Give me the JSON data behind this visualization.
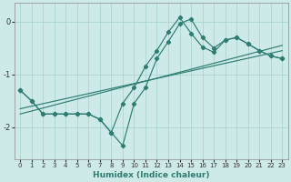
{
  "xlabel": "Humidex (Indice chaleur)",
  "bg_color": "#ceeae8",
  "line_color": "#2e7d72",
  "grid_color": "#aad4d0",
  "xlim": [
    -0.5,
    23.5
  ],
  "ylim": [
    -2.6,
    0.35
  ],
  "yticks": [
    0,
    -1,
    -2
  ],
  "xticks": [
    0,
    1,
    2,
    3,
    4,
    5,
    6,
    7,
    8,
    9,
    10,
    11,
    12,
    13,
    14,
    15,
    16,
    17,
    18,
    19,
    20,
    21,
    22,
    23
  ],
  "line1_x": [
    0,
    1,
    2,
    3,
    4,
    5,
    6,
    7,
    8,
    9,
    10,
    11,
    12,
    13,
    14,
    15,
    16,
    17,
    18,
    19,
    20,
    21,
    22,
    23
  ],
  "line1_y": [
    -1.3,
    -1.5,
    -1.75,
    -1.75,
    -1.75,
    -1.75,
    -1.75,
    -1.85,
    -2.1,
    -2.35,
    -1.55,
    -1.25,
    -0.7,
    -0.38,
    -0.04,
    0.05,
    -0.3,
    -0.5,
    -0.35,
    -0.3,
    -0.42,
    -0.55,
    -0.65,
    -0.7
  ],
  "line2_x": [
    0,
    1,
    2,
    3,
    4,
    5,
    6,
    7,
    8,
    9,
    10,
    11,
    12,
    13,
    14,
    15,
    16,
    17,
    18,
    19,
    20,
    21,
    22,
    23
  ],
  "line2_y": [
    -1.3,
    -1.5,
    -1.75,
    -1.75,
    -1.75,
    -1.75,
    -1.75,
    -1.85,
    -2.1,
    -1.55,
    -1.25,
    -0.85,
    -0.55,
    -0.2,
    0.08,
    -0.22,
    -0.48,
    -0.58,
    -0.35,
    -0.3,
    -0.42,
    -0.55,
    -0.65,
    -0.7
  ],
  "trend1_x": [
    0,
    23
  ],
  "trend1_y": [
    -1.65,
    -0.55
  ],
  "trend2_x": [
    0,
    23
  ],
  "trend2_y": [
    -1.75,
    -0.45
  ]
}
